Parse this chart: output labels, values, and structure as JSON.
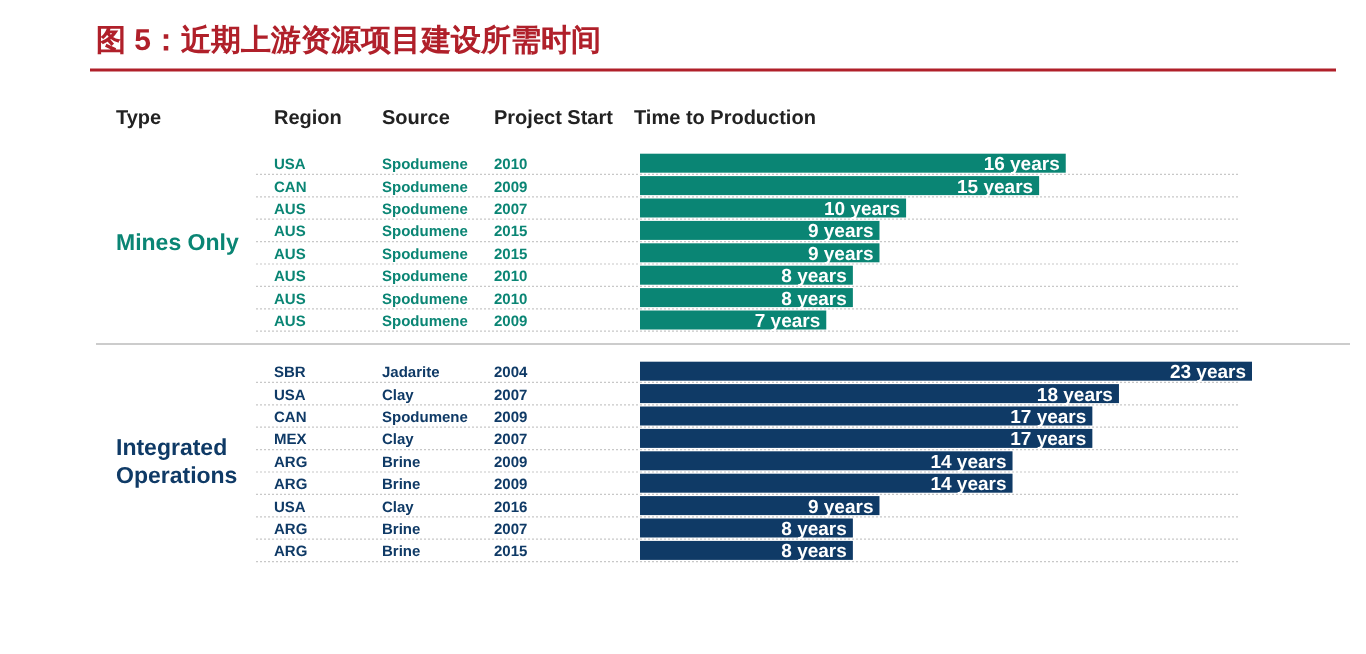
{
  "chart_data": [
    {
      "type": "bar",
      "orientation": "horizontal",
      "title": "图 5：近期上游资源项目建设所需时间",
      "xlabel": "Time to Production",
      "ylabel": "Mines Only",
      "categories": [
        "USA",
        "CAN",
        "AUS",
        "AUS",
        "AUS",
        "AUS",
        "AUS",
        "AUS"
      ],
      "values": [
        16,
        15,
        10,
        9,
        9,
        8,
        8,
        7
      ],
      "value_labels": [
        "16 years",
        "15 years",
        "10 years",
        "9 years",
        "9 years",
        "8 years",
        "8 years",
        "7 years"
      ],
      "colors": [
        "#0a8574",
        "#0a8574",
        "#0a8574",
        "#0a8574",
        "#0a8574",
        "#0a8574",
        "#0a8574",
        "#0a8574"
      ],
      "annotations": [
        "Type",
        "Region",
        "Source",
        "Project Start",
        "Spodumene",
        "Spodumene",
        "Spodumene",
        "Spodumene",
        "Spodumene",
        "Spodumene",
        "Spodumene",
        "Spodumene",
        "2010",
        "2009",
        "2007",
        "2015",
        "2015",
        "2010",
        "2010",
        "2009"
      ]
    },
    {
      "type": "bar",
      "orientation": "horizontal",
      "ylabel": "Integrated Operations",
      "categories": [
        "SBR",
        "USA",
        "CAN",
        "MEX",
        "ARG",
        "ARG",
        "USA",
        "ARG",
        "ARG"
      ],
      "values": [
        23,
        18,
        17,
        17,
        14,
        14,
        9,
        8,
        8
      ],
      "value_labels": [
        "23 years",
        "18 years",
        "17 years",
        "17 years",
        "14 years",
        "14 years",
        "9 years",
        "8 years",
        "8 years"
      ],
      "colors": [
        "#0f3a66",
        "#0f3a66",
        "#0f3a66",
        "#0f3a66",
        "#0f3a66",
        "#0f3a66",
        "#0f3a66",
        "#0f3a66",
        "#0f3a66"
      ],
      "annotations": [
        "Jadarite",
        "Clay",
        "Spodumene",
        "Clay",
        "Brine",
        "Brine",
        "Clay",
        "Brine",
        "Brine",
        "2004",
        "2007",
        "2009",
        "2007",
        "2009",
        "2009",
        "2016",
        "2007",
        "2015"
      ]
    }
  ]
}
